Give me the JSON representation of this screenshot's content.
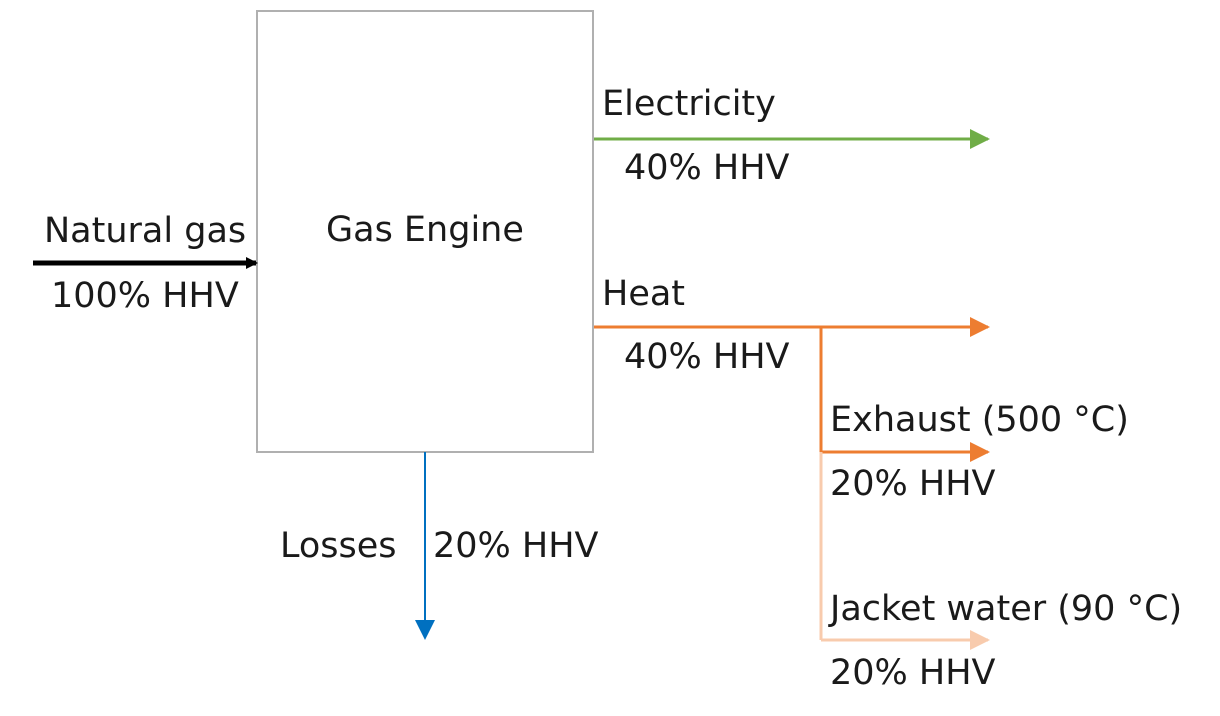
{
  "engine": {
    "label": "Gas Engine"
  },
  "input": {
    "name": "Natural gas",
    "value": "100% HHV"
  },
  "electricity": {
    "name": "Electricity",
    "value": "40% HHV"
  },
  "heat": {
    "name": "Heat",
    "value": "40% HHV"
  },
  "exhaust": {
    "name": "Exhaust (500 °C)",
    "value": "20% HHV"
  },
  "jacket": {
    "name": "Jacket water (90 °C)",
    "value": "20% HHV"
  },
  "losses": {
    "name": "Losses",
    "value": "20% HHV"
  },
  "colors": {
    "input": "#000000",
    "electricity": "#70ad47",
    "heat": "#ed7d31",
    "jacket": "#f8cbad",
    "losses": "#0070c0",
    "box_border": "#b0b0b0"
  }
}
